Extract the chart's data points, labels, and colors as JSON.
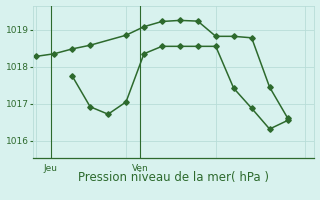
{
  "line1_x": [
    0,
    1,
    2,
    3,
    5,
    6,
    7,
    8,
    9,
    10,
    11,
    12,
    13,
    14
  ],
  "line1_y": [
    1018.28,
    1018.35,
    1018.48,
    1018.58,
    1018.85,
    1019.08,
    1019.22,
    1019.25,
    1019.23,
    1018.82,
    1018.82,
    1018.78,
    1017.45,
    1016.62
  ],
  "line2_x": [
    2,
    3,
    4,
    5,
    6,
    7,
    8,
    9,
    10,
    11,
    12,
    13,
    14
  ],
  "line2_y": [
    1017.75,
    1016.92,
    1016.72,
    1017.05,
    1018.35,
    1018.55,
    1018.55,
    1018.55,
    1018.55,
    1017.42,
    1016.88,
    1016.32,
    1016.55
  ],
  "line_color": "#2d6a2d",
  "bg_color": "#d8f2ee",
  "grid_color": "#b8ddd8",
  "xlabel": "Pression niveau de la mer( hPa )",
  "xlabel_fontsize": 8.5,
  "yticks": [
    1016,
    1017,
    1018,
    1019
  ],
  "ylim": [
    1015.55,
    1019.65
  ],
  "xlim": [
    -0.2,
    15.5
  ],
  "jeu_x": 0.8,
  "ven_x": 5.8,
  "tick_color": "#2d6a2d",
  "spine_color": "#2d6a2d"
}
